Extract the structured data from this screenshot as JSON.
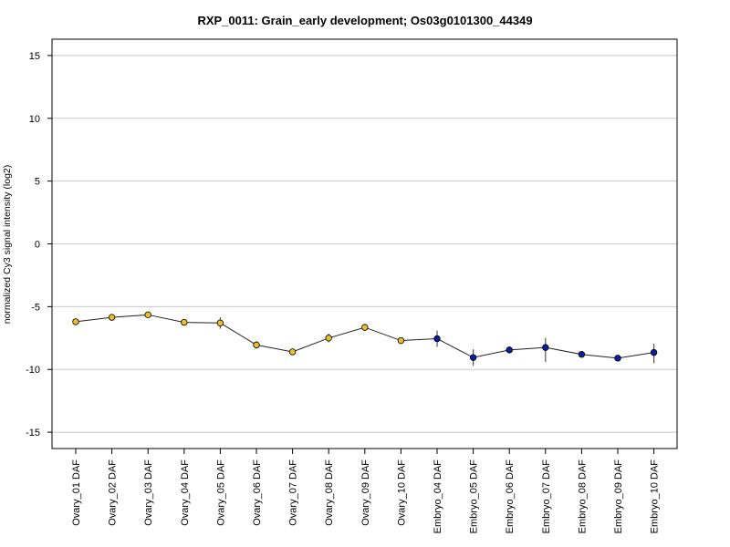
{
  "chart_data": {
    "type": "line",
    "title": "RXP_0011: Grain_early development; Os03g0101300_44349",
    "xlabel": "",
    "ylabel": "normalized Cy3 signal intensity (log2)",
    "ylim": [
      -16.3,
      16.3
    ],
    "yticks": [
      15,
      10,
      5,
      0,
      -5,
      -10,
      -15
    ],
    "grid": true,
    "categories": [
      "Ovary_01 DAF",
      "Ovary_02 DAF",
      "Ovary_03 DAF",
      "Ovary_04 DAF",
      "Ovary_05 DAF",
      "Ovary_06 DAF",
      "Ovary_07 DAF",
      "Ovary_08 DAF",
      "Ovary_09 DAF",
      "Ovary_10 DAF",
      "Embryo_04 DAF",
      "Embryo_05 DAF",
      "Embryo_06 DAF",
      "Embryo_07 DAF",
      "Embryo_08 DAF",
      "Embryo_09 DAF",
      "Embryo_10 DAF"
    ],
    "values": [
      -6.2,
      -5.85,
      -5.65,
      -6.25,
      -6.3,
      -8.05,
      -8.6,
      -7.5,
      -6.65,
      -7.7,
      -7.55,
      -9.05,
      -8.45,
      -8.25,
      -8.8,
      -9.1,
      -8.65
    ],
    "err_low": [
      -6.45,
      -6.05,
      -5.8,
      -6.45,
      -6.75,
      -8.35,
      -8.75,
      -7.85,
      -6.85,
      -7.95,
      -8.2,
      -9.7,
      -8.6,
      -9.4,
      -8.95,
      -9.25,
      -9.5
    ],
    "err_high": [
      -5.95,
      -5.65,
      -5.5,
      -6.05,
      -5.85,
      -7.75,
      -8.45,
      -7.15,
      -6.45,
      -7.45,
      -6.9,
      -8.4,
      -8.3,
      -7.5,
      -8.65,
      -8.95,
      -7.95
    ],
    "point_colors": [
      "#e8c12a",
      "#e8c12a",
      "#e8c12a",
      "#e8c12a",
      "#e8c12a",
      "#e8c12a",
      "#e8c12a",
      "#e8c12a",
      "#e8c12a",
      "#e8c12a",
      "#0a1fa0",
      "#0a1fa0",
      "#0a1fa0",
      "#0a1fa0",
      "#0a1fa0",
      "#0a1fa0",
      "#0a1fa0"
    ],
    "line_color": "#222222",
    "grid_color": "#c8c8c8"
  }
}
